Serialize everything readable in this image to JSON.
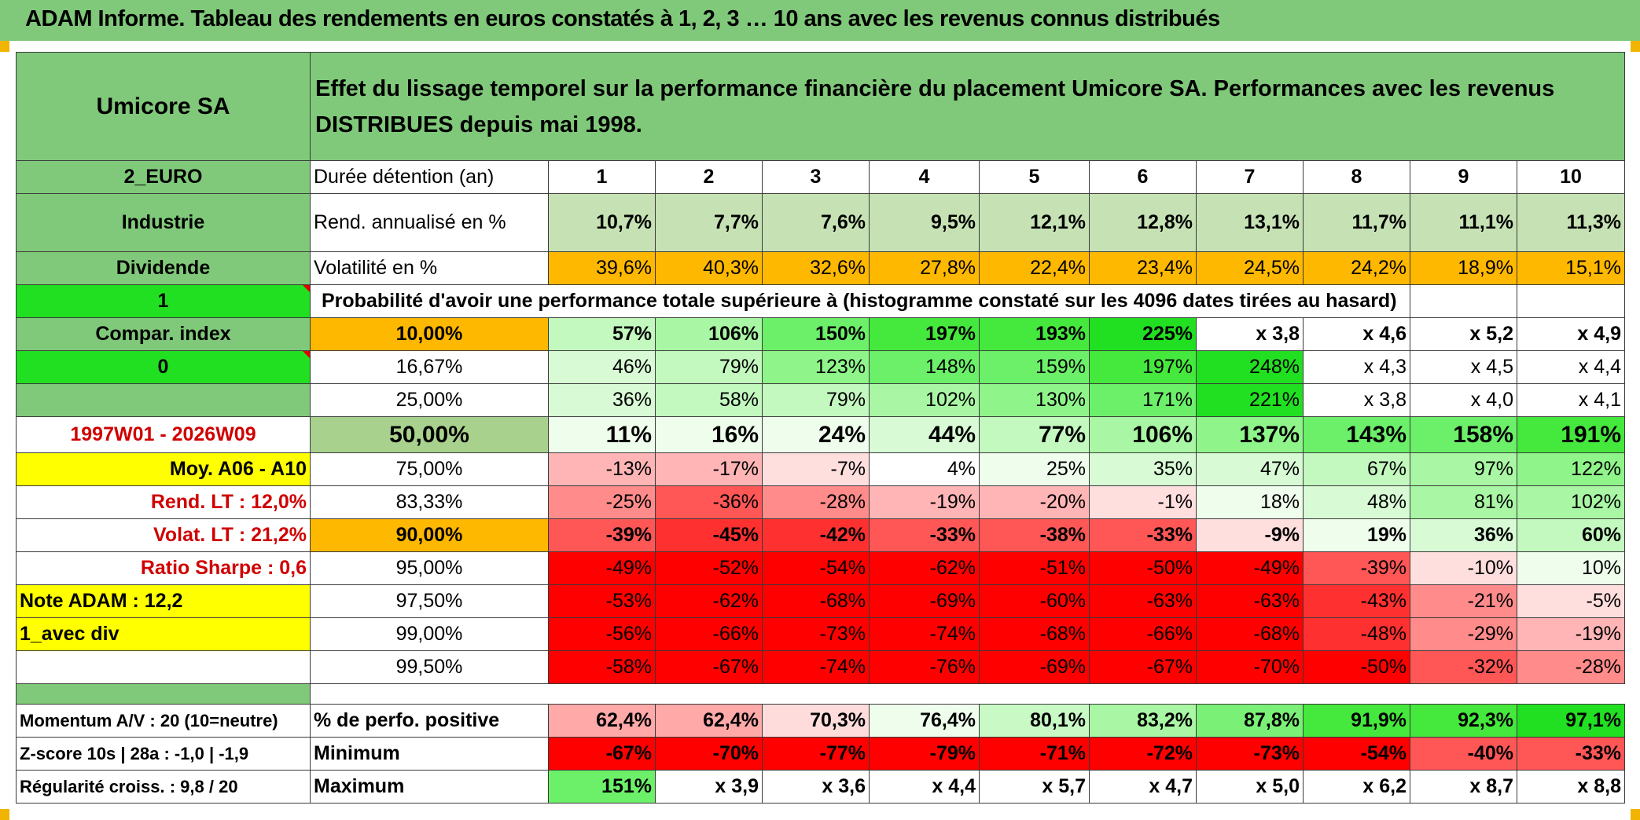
{
  "title": "ADAM Informe. Tableau des rendements en euros constatés à 1, 2, 3 … 10 ans avec les revenus connus distribués",
  "asset_name": "Umicore SA",
  "description": "Effet du lissage temporel sur la performance financière du placement Umicore SA. Performances avec les revenus DISTRIBUES depuis mai 1998.",
  "side": {
    "currency": "2_EURO",
    "sector": "Industrie",
    "dividend": "Dividende",
    "flag1": "1",
    "compar_index": "Compar. index",
    "flag0": "0",
    "period": "1997W01 - 2026W09",
    "moy": "Moy. A06 - A10",
    "rend_lt": "Rend. LT :    12,0%",
    "volat_lt": "Volat. LT :    21,2%",
    "sharpe": "Ratio Sharpe :    0,6",
    "note": "Note ADAM : 12,2",
    "avec_div": "1_avec div",
    "momentum": "Momentum A/V : 20 (10=neutre)",
    "zscore": "Z-score 10s | 28a : -1,0 | -1,9",
    "regularite": "Régularité croiss. : 9,8 / 20"
  },
  "labels": {
    "duree": "Durée détention (an)",
    "rend": "Rend. annualisé en %",
    "vol": "Volatilité en %",
    "proba": "Probabilité d'avoir une performance totale supérieure à (histogramme constaté sur les 4096 dates tirées au hasard)",
    "perfo_pos": "% de perfo. positive",
    "minimum": "Minimum",
    "maximum": "Maximum"
  },
  "years": [
    "1",
    "2",
    "3",
    "4",
    "5",
    "6",
    "7",
    "8",
    "9",
    "10"
  ],
  "rend": [
    "10,7%",
    "7,7%",
    "7,6%",
    "9,5%",
    "12,1%",
    "12,8%",
    "13,1%",
    "11,7%",
    "11,1%",
    "11,3%"
  ],
  "vol": [
    "39,6%",
    "40,3%",
    "32,6%",
    "27,8%",
    "22,4%",
    "23,4%",
    "24,5%",
    "24,2%",
    "18,9%",
    "15,1%"
  ],
  "prob_rows": [
    {
      "p": "10,00%",
      "v": [
        "57%",
        "106%",
        "150%",
        "197%",
        "193%",
        "225%",
        "x 3,8",
        "x 4,6",
        "x 5,2",
        "x 4,9"
      ]
    },
    {
      "p": "16,67%",
      "v": [
        "46%",
        "79%",
        "123%",
        "148%",
        "159%",
        "197%",
        "248%",
        "x 4,3",
        "x 4,5",
        "x 4,4"
      ]
    },
    {
      "p": "25,00%",
      "v": [
        "36%",
        "58%",
        "79%",
        "102%",
        "130%",
        "171%",
        "221%",
        "x 3,8",
        "x 4,0",
        "x 4,1"
      ]
    },
    {
      "p": "50,00%",
      "v": [
        "11%",
        "16%",
        "24%",
        "44%",
        "77%",
        "106%",
        "137%",
        "143%",
        "158%",
        "191%"
      ]
    },
    {
      "p": "75,00%",
      "v": [
        "-13%",
        "-17%",
        "-7%",
        "4%",
        "25%",
        "35%",
        "47%",
        "67%",
        "97%",
        "122%"
      ]
    },
    {
      "p": "83,33%",
      "v": [
        "-25%",
        "-36%",
        "-28%",
        "-19%",
        "-20%",
        "-1%",
        "18%",
        "48%",
        "81%",
        "102%"
      ]
    },
    {
      "p": "90,00%",
      "v": [
        "-39%",
        "-45%",
        "-42%",
        "-33%",
        "-38%",
        "-33%",
        "-9%",
        "19%",
        "36%",
        "60%"
      ]
    },
    {
      "p": "95,00%",
      "v": [
        "-49%",
        "-52%",
        "-54%",
        "-62%",
        "-51%",
        "-50%",
        "-49%",
        "-39%",
        "-10%",
        "10%"
      ]
    },
    {
      "p": "97,50%",
      "v": [
        "-53%",
        "-62%",
        "-68%",
        "-69%",
        "-60%",
        "-63%",
        "-63%",
        "-43%",
        "-21%",
        "-5%"
      ]
    },
    {
      "p": "99,00%",
      "v": [
        "-56%",
        "-66%",
        "-73%",
        "-74%",
        "-68%",
        "-66%",
        "-68%",
        "-48%",
        "-29%",
        "-19%"
      ]
    },
    {
      "p": "99,50%",
      "v": [
        "-58%",
        "-67%",
        "-74%",
        "-76%",
        "-69%",
        "-67%",
        "-70%",
        "-50%",
        "-32%",
        "-28%"
      ]
    }
  ],
  "perfo_pos": [
    "62,4%",
    "62,4%",
    "70,3%",
    "76,4%",
    "80,1%",
    "83,2%",
    "87,8%",
    "91,9%",
    "92,3%",
    "97,1%"
  ],
  "minimum": [
    "-67%",
    "-70%",
    "-77%",
    "-79%",
    "-71%",
    "-72%",
    "-73%",
    "-54%",
    "-40%",
    "-33%"
  ],
  "maximum": [
    "151%",
    "x 3,9",
    "x 3,6",
    "x 4,4",
    "x 5,7",
    "x 4,7",
    "x 5,0",
    "x 6,2",
    "x 8,7",
    "x 8,8"
  ],
  "colors": {
    "header_green": "#80c97a",
    "bright_green": "#21df21",
    "orange": "#ffb800",
    "yellow": "#ffff00",
    "label_red": "#d00000",
    "deep_red": "#ff0000"
  }
}
